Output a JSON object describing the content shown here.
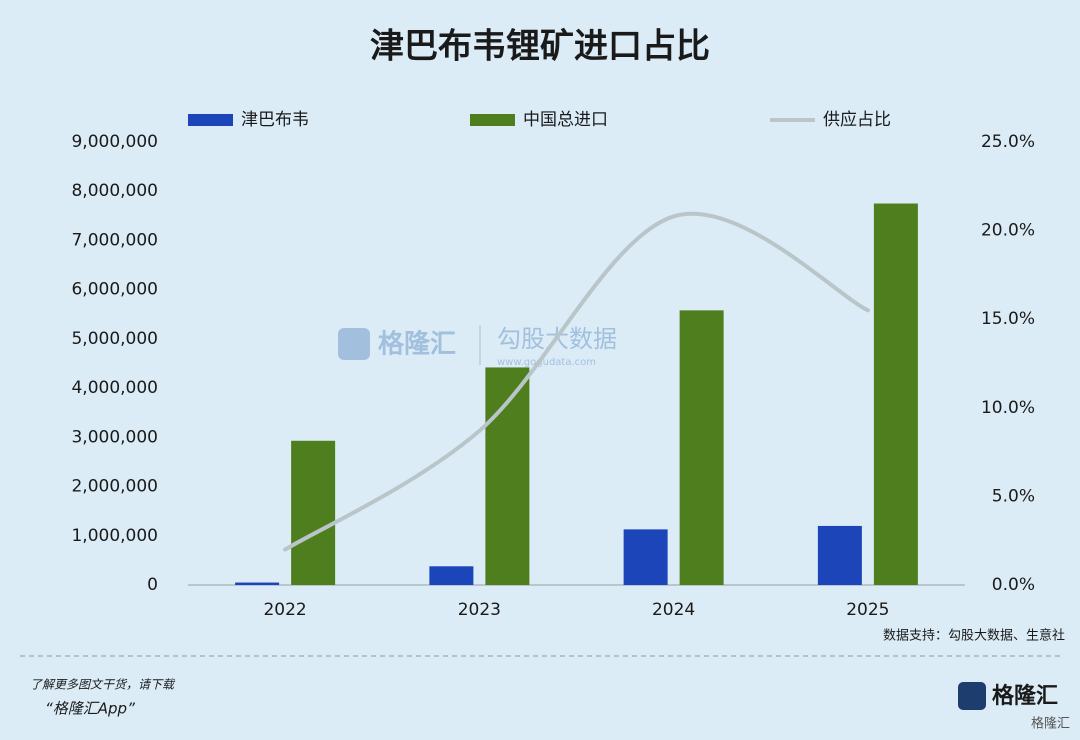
{
  "chart_data": {
    "type": "bar",
    "title": "津巴布韦锂矿进口占比",
    "categories": [
      "2022",
      "2023",
      "2024",
      "2025"
    ],
    "series": [
      {
        "name": "津巴布韦",
        "color": "#1b45b9",
        "values": [
          50000,
          380000,
          1130000,
          1200000
        ]
      },
      {
        "name": "中国总进口",
        "color": "#4f7e1f",
        "values": [
          2930000,
          4420000,
          5580000,
          7750000
        ]
      },
      {
        "name": "供应占比",
        "color": "#b9c5c9",
        "type": "line",
        "axis": "y2",
        "values": [
          2.0,
          8.7,
          20.8,
          15.5
        ]
      }
    ],
    "ylim": [
      0,
      9000000
    ],
    "yticks": [
      0,
      {
        "value": 1000000,
        "label": "1,000,000"
      },
      {
        "value": 2000000,
        "label": "2,000,000"
      },
      {
        "value": 3000000,
        "label": "3,000,000"
      },
      {
        "value": 4000000,
        "label": "4,000,000"
      },
      {
        "value": 5000000,
        "label": "5,000,000"
      },
      {
        "value": 6000000,
        "label": "6,000,000"
      },
      {
        "value": 7000000,
        "label": "7,000,000"
      },
      {
        "value": 8000000,
        "label": "8,000,000"
      },
      {
        "value": 9000000,
        "label": "9,000,000"
      }
    ],
    "y2lim": [
      0,
      25
    ],
    "y2ticks": [
      {
        "value": 0,
        "label": "0.0%"
      },
      {
        "value": 5,
        "label": "5.0%"
      },
      {
        "value": 10,
        "label": "10.0%"
      },
      {
        "value": 15,
        "label": "15.0%"
      },
      {
        "value": 20,
        "label": "20.0%"
      },
      {
        "value": 25,
        "label": "25.0%"
      }
    ],
    "grid": false,
    "legend": "top",
    "source": "数据支持：勾股大数据、生意社"
  },
  "watermark": {
    "brand": "格隆汇",
    "partner": "勾股大数据",
    "url": "www.gogudata.com"
  },
  "footer": {
    "line1": "了解更多图文干货，请下载",
    "line2": "“格隆汇App”",
    "logo": "格隆汇",
    "corner": "格隆汇"
  }
}
